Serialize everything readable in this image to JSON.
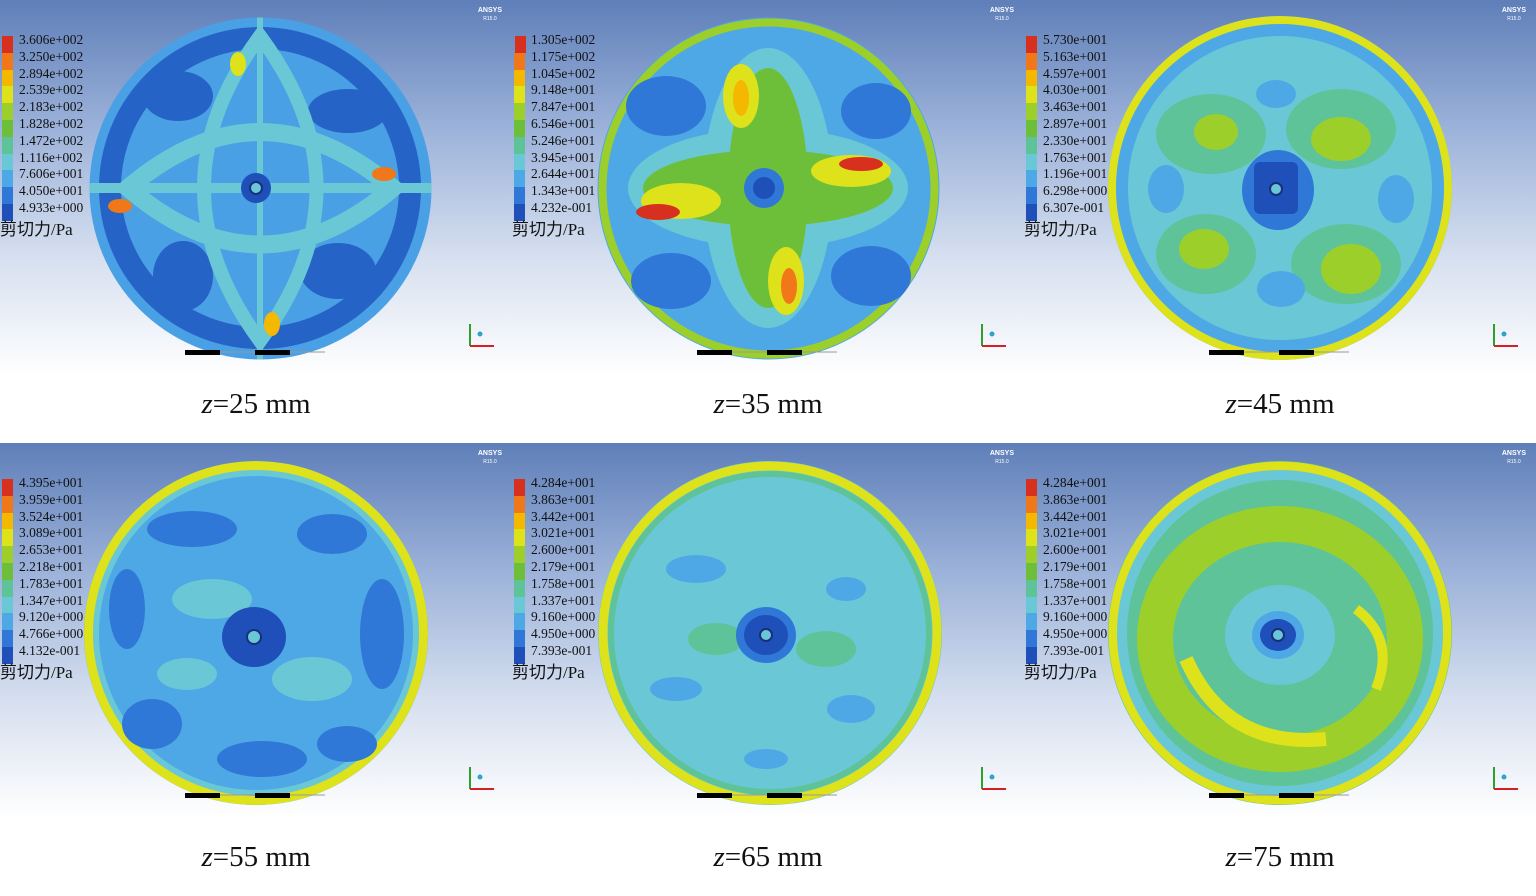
{
  "panels": [
    {
      "id": "z25",
      "caption_var": "z",
      "caption_value": "=25 mm",
      "legend": [
        "3.606e+002",
        "3.250e+002",
        "2.894e+002",
        "2.539e+002",
        "2.183e+002",
        "1.828e+002",
        "1.472e+002",
        "1.116e+002",
        "7.606e+001",
        "4.050e+001",
        "4.933e+000"
      ],
      "unit": "剪切力/Pa",
      "watermark": "ANSYS",
      "watermark_sub": "R15.0"
    },
    {
      "id": "z35",
      "caption_var": "z",
      "caption_value": "=35 mm",
      "legend": [
        "1.305e+002",
        "1.175e+002",
        "1.045e+002",
        "9.148e+001",
        "7.847e+001",
        "6.546e+001",
        "5.246e+001",
        "3.945e+001",
        "2.644e+001",
        "1.343e+001",
        "4.232e-001"
      ],
      "unit": "剪切力/Pa",
      "watermark": "ANSYS",
      "watermark_sub": "R15.0"
    },
    {
      "id": "z45",
      "caption_var": "z",
      "caption_value": "=45 mm",
      "legend": [
        "5.730e+001",
        "5.163e+001",
        "4.597e+001",
        "4.030e+001",
        "3.463e+001",
        "2.897e+001",
        "2.330e+001",
        "1.763e+001",
        "1.196e+001",
        "6.298e+000",
        "6.307e-001"
      ],
      "unit": "剪切力/Pa",
      "watermark": "ANSYS",
      "watermark_sub": "R15.0"
    },
    {
      "id": "z55",
      "caption_var": "z",
      "caption_value": "=55 mm",
      "legend": [
        "4.395e+001",
        "3.959e+001",
        "3.524e+001",
        "3.089e+001",
        "2.653e+001",
        "2.218e+001",
        "1.783e+001",
        "1.347e+001",
        "9.120e+000",
        "4.766e+000",
        "4.132e-001"
      ],
      "unit": "剪切力/Pa",
      "watermark": "ANSYS",
      "watermark_sub": "R15.0"
    },
    {
      "id": "z65",
      "caption_var": "z",
      "caption_value": "=65 mm",
      "legend": [
        "4.284e+001",
        "3.863e+001",
        "3.442e+001",
        "3.021e+001",
        "2.600e+001",
        "2.179e+001",
        "1.758e+001",
        "1.337e+001",
        "9.160e+000",
        "4.950e+000",
        "7.393e-001"
      ],
      "unit": "剪切力/Pa",
      "watermark": "ANSYS",
      "watermark_sub": "R15.0"
    },
    {
      "id": "z75",
      "caption_var": "z",
      "caption_value": "=75 mm",
      "legend": [
        "4.284e+001",
        "3.863e+001",
        "3.442e+001",
        "3.021e+001",
        "2.600e+001",
        "2.179e+001",
        "1.758e+001",
        "1.337e+001",
        "9.160e+000",
        "4.950e+000",
        "7.393e-001"
      ],
      "unit": "剪切力/Pa",
      "watermark": "ANSYS",
      "watermark_sub": "R15.0"
    }
  ],
  "colormap": [
    "#d7301f",
    "#f07818",
    "#f5b800",
    "#dde21a",
    "#9ccf2a",
    "#6dbf3a",
    "#5fc39a",
    "#6ac7d6",
    "#4fa8e6",
    "#2f78d8",
    "#1f4fb8"
  ]
}
